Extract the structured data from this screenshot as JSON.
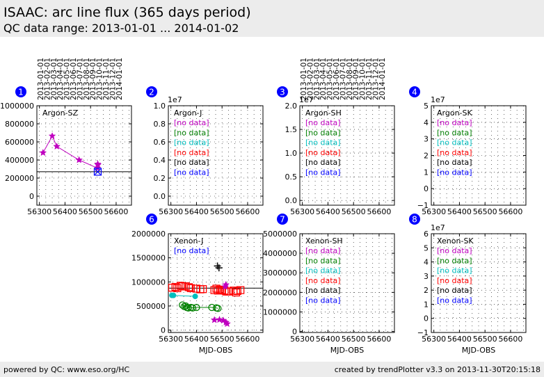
{
  "header": {
    "title": "ISAAC: arc line flux (365 days period)",
    "subtitle": "QC data range: 2013-01-01 ... 2014-01-02"
  },
  "footer": {
    "left": "powered by QC: www.eso.org/HC",
    "right": "created by trendPlotter v3.3 on 2013-11-30T20:15:18"
  },
  "top_date_labels": [
    "2013-01-01",
    "2013-02-01",
    "2013-03-01",
    "2013-04-01",
    "2013-05-01",
    "2013-06-01",
    "2013-07-01",
    "2013-08-01",
    "2013-09-01",
    "2013-10-01",
    "2013-11-01",
    "2013-12-01",
    "2014-01-01"
  ],
  "colors": {
    "magenta": "#bf00bf",
    "green": "#008000",
    "cyan": "#00bfbf",
    "red": "#ff0000",
    "black": "#000000",
    "blue": "#0000ff",
    "badge": "#0000ff"
  },
  "chart_data": [
    {
      "panel": 1,
      "type": "scatter",
      "label": "Argon-SZ",
      "xlabel": "",
      "xlim": [
        56290,
        56660
      ],
      "ylim": [
        -100000,
        1000000
      ],
      "xticks": [
        56300,
        56400,
        56500,
        56600
      ],
      "yticks": [
        0,
        200000,
        400000,
        600000,
        800000,
        1000000
      ],
      "yticklabels": [
        "0",
        "200000",
        "400000",
        "600000",
        "800000",
        "1000000"
      ],
      "multiplier": "",
      "hline": 270000,
      "series": [
        {
          "color": "magenta",
          "marker": "star",
          "line": true,
          "points": [
            [
              56314,
              480000
            ],
            [
              56350,
              665000
            ],
            [
              56368,
              550000
            ],
            [
              56455,
              400000
            ],
            [
              56527,
              310000
            ]
          ]
        },
        {
          "color": "magenta",
          "marker": "star",
          "line": false,
          "points": [
            [
              56528,
              355000
            ],
            [
              56529,
              345000
            ]
          ]
        },
        {
          "color": "blue",
          "marker": "x-square",
          "line": false,
          "points": [
            [
              56528,
              270000
            ]
          ]
        }
      ],
      "nodata": []
    },
    {
      "panel": 2,
      "type": "scatter",
      "label": "Argon-J",
      "xlabel": "",
      "xlim": [
        56290,
        56660
      ],
      "ylim": [
        -0.1,
        1.0
      ],
      "xticks": [
        56300,
        56400,
        56500,
        56600
      ],
      "yticks": [
        0,
        0.2,
        0.4,
        0.6,
        0.8,
        1.0
      ],
      "yticklabels": [
        "0.0",
        "0.2",
        "0.4",
        "0.6",
        "0.8",
        "1.0"
      ],
      "multiplier": "1e7",
      "series": [],
      "nodata": [
        {
          "text": "[no data]",
          "color": "magenta"
        },
        {
          "text": "[no data]",
          "color": "green"
        },
        {
          "text": "[no data]",
          "color": "cyan"
        },
        {
          "text": "[no data]",
          "color": "red"
        },
        {
          "text": "[no data]",
          "color": "black"
        },
        {
          "text": "[no data]",
          "color": "blue"
        }
      ]
    },
    {
      "panel": 3,
      "type": "scatter",
      "label": "Argon-SH",
      "xlabel": "",
      "xlim": [
        56290,
        56660
      ],
      "ylim": [
        -0.1,
        2.0
      ],
      "xticks": [
        56300,
        56400,
        56500,
        56600
      ],
      "yticks": [
        0,
        0.5,
        1.0,
        1.5,
        2.0
      ],
      "yticklabels": [
        "0.0",
        "0.5",
        "1.0",
        "1.5",
        "2.0"
      ],
      "multiplier": "1e7",
      "series": [],
      "nodata": [
        {
          "text": "[no data]",
          "color": "magenta"
        },
        {
          "text": "[no data]",
          "color": "green"
        },
        {
          "text": "[no data]",
          "color": "cyan"
        },
        {
          "text": "[no data]",
          "color": "red"
        },
        {
          "text": "[no data]",
          "color": "black"
        },
        {
          "text": "[no data]",
          "color": "blue"
        }
      ]
    },
    {
      "panel": 4,
      "type": "scatter",
      "label": "Argon-SK",
      "xlabel": "",
      "xlim": [
        56290,
        56660
      ],
      "ylim": [
        -1,
        5
      ],
      "xticks": [
        56300,
        56400,
        56500,
        56600
      ],
      "yticks": [
        -1,
        0,
        1,
        2,
        3,
        4,
        5
      ],
      "yticklabels": [
        "−1",
        "0",
        "1",
        "2",
        "3",
        "4",
        "5"
      ],
      "multiplier": "1e7",
      "series": [],
      "nodata": [
        {
          "text": "[no data]",
          "color": "magenta"
        },
        {
          "text": "[no data]",
          "color": "green"
        },
        {
          "text": "[no data]",
          "color": "cyan"
        },
        {
          "text": "[no data]",
          "color": "red"
        },
        {
          "text": "[no data]",
          "color": "black"
        },
        {
          "text": "[no data]",
          "color": "blue"
        }
      ]
    },
    {
      "panel": 6,
      "type": "scatter",
      "label": "Xenon-J",
      "xlabel": "MJD-OBS",
      "xlim": [
        56290,
        56660
      ],
      "ylim": [
        -50000,
        2000000
      ],
      "xticks": [
        56300,
        56400,
        56500,
        56600
      ],
      "yticks": [
        0,
        500000,
        1000000,
        1500000,
        2000000
      ],
      "yticklabels": [
        "0",
        "500000",
        "1000000",
        "1500000",
        "2000000"
      ],
      "multiplier": "",
      "hline": 870000,
      "series": [
        {
          "color": "red",
          "marker": "square",
          "line": false,
          "points": [
            [
              56305,
              880000
            ],
            [
              56318,
              895000
            ],
            [
              56325,
              870000
            ],
            [
              56338,
              920000
            ],
            [
              56345,
              905000
            ],
            [
              56358,
              910000
            ],
            [
              56370,
              890000
            ],
            [
              56378,
              870000
            ],
            [
              56400,
              860000
            ],
            [
              56415,
              845000
            ],
            [
              56425,
              850000
            ],
            [
              56470,
              830000
            ],
            [
              56478,
              860000
            ],
            [
              56484,
              820000
            ],
            [
              56492,
              840000
            ],
            [
              56500,
              830000
            ],
            [
              56510,
              820000
            ],
            [
              56516,
              800000
            ],
            [
              56525,
              800000
            ],
            [
              56545,
              820000
            ],
            [
              56555,
              780000
            ],
            [
              56560,
              810000
            ],
            [
              56572,
              830000
            ]
          ]
        },
        {
          "color": "green",
          "marker": "circle",
          "line": true,
          "points": [
            [
              56345,
              520000
            ],
            [
              56352,
              490000
            ],
            [
              56358,
              500000
            ],
            [
              56362,
              470000
            ],
            [
              56368,
              460000
            ],
            [
              56378,
              470000
            ],
            [
              56385,
              460000
            ],
            [
              56400,
              470000
            ],
            [
              56460,
              470000
            ],
            [
              56478,
              460000
            ],
            [
              56484,
              450000
            ]
          ]
        },
        {
          "color": "cyan",
          "marker": "dot",
          "line": true,
          "points": [
            [
              56304,
              720000
            ],
            [
              56310,
              720000
            ],
            [
              56395,
              700000
            ]
          ]
        },
        {
          "color": "magenta",
          "marker": "star",
          "line": true,
          "points": [
            [
              56470,
              210000
            ],
            [
              56490,
              215000
            ],
            [
              56505,
              200000
            ],
            [
              56515,
              160000
            ],
            [
              56520,
              130000
            ]
          ]
        },
        {
          "color": "magenta",
          "marker": "star",
          "line": false,
          "points": [
            [
              56515,
              940000
            ],
            [
              56512,
              900000
            ]
          ]
        },
        {
          "color": "black",
          "marker": "plus",
          "line": false,
          "points": [
            [
              56482,
              1330000
            ],
            [
              56488,
              1290000
            ]
          ]
        }
      ],
      "nodata": [
        {
          "text": "[no data]",
          "color": "blue"
        }
      ]
    },
    {
      "panel": 7,
      "type": "scatter",
      "label": "Xenon-SH",
      "xlabel": "MJD-OBS",
      "xlim": [
        56290,
        56660
      ],
      "ylim": [
        -50000,
        5000000
      ],
      "xticks": [
        56300,
        56400,
        56500,
        56600
      ],
      "yticks": [
        0,
        1000000,
        2000000,
        3000000,
        4000000,
        5000000
      ],
      "yticklabels": [
        "0",
        "1000000",
        "2000000",
        "3000000",
        "4000000",
        "5000000"
      ],
      "multiplier": "",
      "series": [],
      "nodata": [
        {
          "text": "[no data]",
          "color": "magenta"
        },
        {
          "text": "[no data]",
          "color": "green"
        },
        {
          "text": "[no data]",
          "color": "cyan"
        },
        {
          "text": "[no data]",
          "color": "red"
        },
        {
          "text": "[no data]",
          "color": "black"
        },
        {
          "text": "[no data]",
          "color": "blue"
        }
      ]
    },
    {
      "panel": 8,
      "type": "scatter",
      "label": "Xenon-SK",
      "xlabel": "MJD-OBS",
      "xlim": [
        56290,
        56660
      ],
      "ylim": [
        -1,
        6
      ],
      "xticks": [
        56300,
        56400,
        56500,
        56600
      ],
      "yticks": [
        -1,
        0,
        1,
        2,
        3,
        4,
        5,
        6
      ],
      "yticklabels": [
        "−1",
        "0",
        "1",
        "2",
        "3",
        "4",
        "5",
        "6"
      ],
      "multiplier": "1e7",
      "series": [],
      "nodata": [
        {
          "text": "[no data]",
          "color": "magenta"
        },
        {
          "text": "[no data]",
          "color": "green"
        },
        {
          "text": "[no data]",
          "color": "cyan"
        },
        {
          "text": "[no data]",
          "color": "red"
        },
        {
          "text": "[no data]",
          "color": "black"
        },
        {
          "text": "[no data]",
          "color": "blue"
        }
      ]
    }
  ]
}
